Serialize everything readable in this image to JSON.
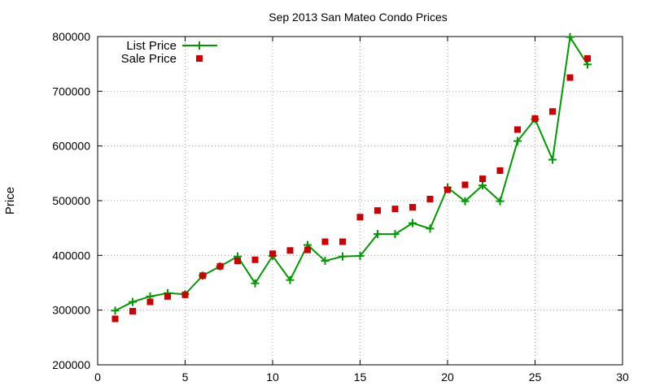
{
  "chart_data": {
    "type": "line",
    "title": "Sep 2013 San Mateo Condo Prices",
    "xlabel": "",
    "ylabel": "Price",
    "xlim": [
      0,
      30
    ],
    "ylim": [
      200000,
      800000
    ],
    "x_ticks": [
      0,
      5,
      10,
      15,
      20,
      25,
      30
    ],
    "y_ticks": [
      200000,
      300000,
      400000,
      500000,
      600000,
      700000,
      800000
    ],
    "grid": true,
    "legend_position": "top-left",
    "series": [
      {
        "name": "List Price",
        "style": "linespoints",
        "marker": "plus",
        "color": "#009900",
        "x": [
          1,
          2,
          3,
          4,
          5,
          6,
          7,
          8,
          9,
          10,
          11,
          12,
          13,
          14,
          15,
          16,
          17,
          18,
          19,
          20,
          21,
          22,
          23,
          24,
          25,
          26,
          27,
          28
        ],
        "y": [
          299000,
          315000,
          325000,
          331000,
          329000,
          363000,
          380000,
          398000,
          349000,
          399000,
          355000,
          419000,
          390000,
          398000,
          399000,
          439000,
          439000,
          459000,
          449000,
          524000,
          499000,
          528000,
          499000,
          609000,
          649000,
          575000,
          799000,
          749000
        ]
      },
      {
        "name": "Sale Price",
        "style": "points",
        "marker": "square",
        "color": "#cc0000",
        "x": [
          1,
          2,
          3,
          4,
          5,
          6,
          7,
          8,
          9,
          10,
          11,
          12,
          13,
          14,
          15,
          16,
          17,
          18,
          19,
          20,
          21,
          22,
          23,
          24,
          25,
          26,
          27,
          28
        ],
        "y": [
          284000,
          298000,
          315000,
          325000,
          328000,
          363000,
          380000,
          390000,
          392000,
          403000,
          409000,
          410000,
          425000,
          425000,
          470000,
          482000,
          485000,
          488000,
          503000,
          520000,
          529000,
          540000,
          555000,
          630000,
          650000,
          663000,
          725000,
          760000
        ]
      }
    ]
  }
}
